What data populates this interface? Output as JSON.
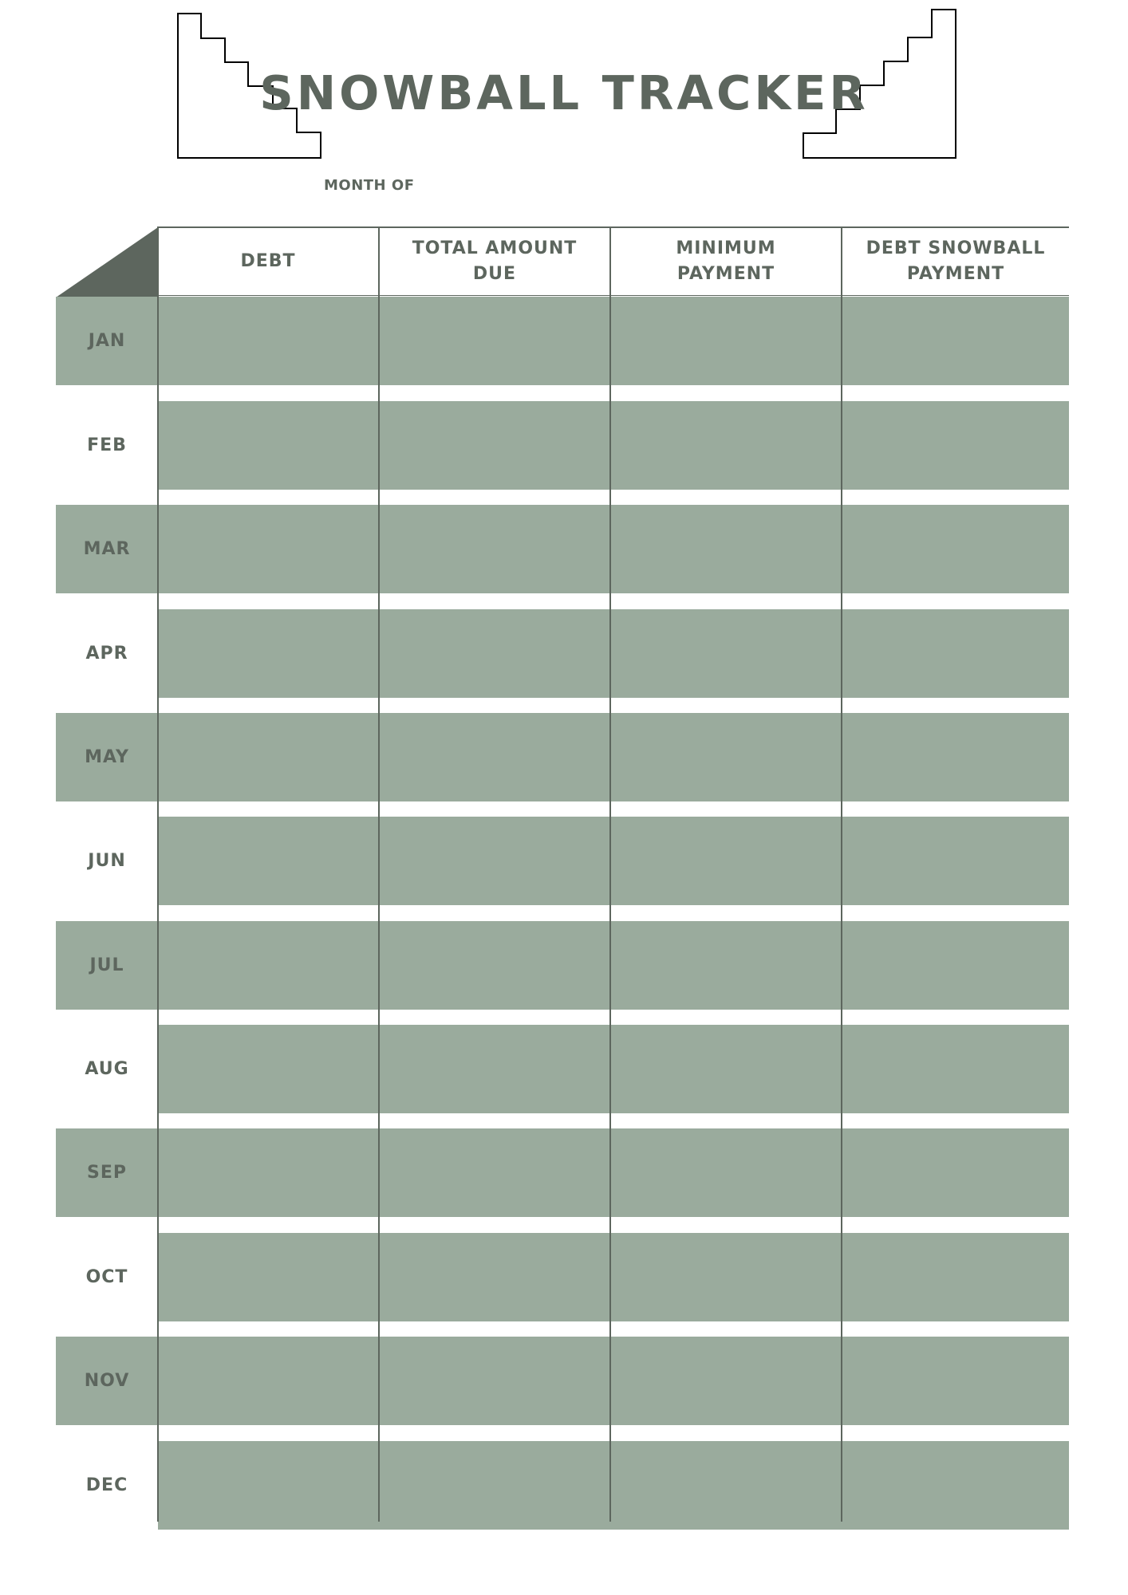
{
  "title": "SNOWBALL TRACKER",
  "month_of_label": "MONTH OF",
  "columns": [
    "DEBT",
    "TOTAL AMOUNT\nDUE",
    "MINIMUM\nPAYMENT",
    "DEBT SNOWBALL\nPAYMENT"
  ],
  "months": [
    "JAN",
    "FEB",
    "MAR",
    "APR",
    "MAY",
    "JUN",
    "JUL",
    "AUG",
    "SEP",
    "OCT",
    "NOV",
    "DEC"
  ],
  "colors": {
    "text": "#5d665e",
    "band": "#9aab9d",
    "corner": "#5d665e"
  }
}
